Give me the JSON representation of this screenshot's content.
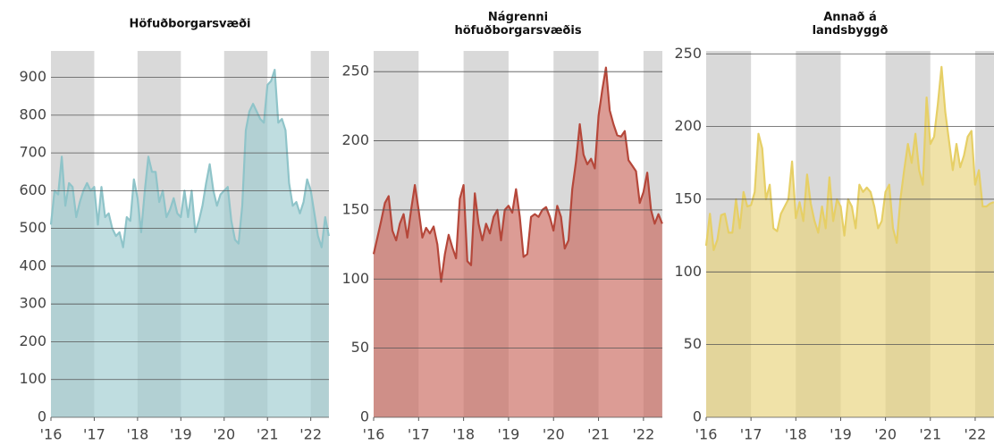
{
  "chart_data": [
    {
      "type": "area",
      "title": [
        "Höfuðborgarsvæði"
      ],
      "color": "#8fc4c9",
      "fill": "#9ccbcf",
      "xlim": [
        2016,
        2022.42
      ],
      "xticks": [
        {
          "value": 2016,
          "label": "'16"
        },
        {
          "value": 2017,
          "label": "'17"
        },
        {
          "value": 2018,
          "label": "'18"
        },
        {
          "value": 2019,
          "label": "'19"
        },
        {
          "value": 2020,
          "label": "'20"
        },
        {
          "value": 2021,
          "label": "'21"
        },
        {
          "value": 2022,
          "label": "'22"
        }
      ],
      "ylim": [
        0,
        970
      ],
      "yticks": [
        0,
        100,
        200,
        300,
        400,
        500,
        600,
        700,
        800,
        900
      ],
      "grid": true,
      "values": [
        510,
        600,
        590,
        690,
        560,
        620,
        610,
        530,
        570,
        600,
        620,
        600,
        610,
        510,
        610,
        530,
        540,
        500,
        480,
        490,
        450,
        530,
        520,
        630,
        580,
        490,
        600,
        690,
        650,
        650,
        570,
        600,
        530,
        550,
        580,
        540,
        530,
        600,
        530,
        600,
        490,
        520,
        560,
        620,
        670,
        600,
        560,
        590,
        600,
        610,
        520,
        470,
        460,
        560,
        760,
        810,
        830,
        810,
        790,
        780,
        880,
        890,
        920,
        780,
        790,
        760,
        620,
        560,
        570,
        540,
        570,
        630,
        600,
        540,
        480,
        450,
        530,
        480
      ]
    },
    {
      "type": "area",
      "title": [
        "Nágrenni",
        "höfuðborgarsvæðis"
      ],
      "color": "#b5473a",
      "fill": "#c9675c",
      "xlim": [
        2016,
        2022.42
      ],
      "xticks": [
        {
          "value": 2016,
          "label": "'16"
        },
        {
          "value": 2017,
          "label": "'17"
        },
        {
          "value": 2018,
          "label": "'18"
        },
        {
          "value": 2019,
          "label": "'19"
        },
        {
          "value": 2020,
          "label": "'20"
        },
        {
          "value": 2021,
          "label": "'21"
        },
        {
          "value": 2022,
          "label": "'22"
        }
      ],
      "ylim": [
        0,
        265
      ],
      "yticks": [
        0,
        50,
        100,
        150,
        200,
        250
      ],
      "grid": true,
      "values": [
        118,
        130,
        142,
        155,
        160,
        135,
        128,
        140,
        147,
        130,
        150,
        168,
        150,
        130,
        137,
        133,
        138,
        125,
        98,
        118,
        132,
        123,
        115,
        158,
        168,
        113,
        110,
        162,
        140,
        128,
        140,
        133,
        145,
        150,
        128,
        150,
        153,
        148,
        165,
        145,
        116,
        118,
        145,
        147,
        145,
        150,
        152,
        145,
        135,
        153,
        145,
        122,
        128,
        165,
        185,
        212,
        190,
        183,
        187,
        180,
        218,
        237,
        253,
        222,
        212,
        204,
        203,
        207,
        186,
        182,
        178,
        155,
        163,
        177,
        150,
        140,
        147,
        140
      ]
    },
    {
      "type": "area",
      "title": [
        "Annað á",
        "landsbyggð"
      ],
      "color": "#e6cf66",
      "fill": "#e8d27a",
      "xlim": [
        2016,
        2022.42
      ],
      "xticks": [
        {
          "value": 2016,
          "label": "'16"
        },
        {
          "value": 2017,
          "label": "'17"
        },
        {
          "value": 2018,
          "label": "'18"
        },
        {
          "value": 2019,
          "label": "'19"
        },
        {
          "value": 2020,
          "label": "'20"
        },
        {
          "value": 2021,
          "label": "'21"
        },
        {
          "value": 2022,
          "label": "'22"
        }
      ],
      "ylim": [
        0,
        252
      ],
      "yticks": [
        0,
        50,
        100,
        150,
        200,
        250
      ],
      "grid": true,
      "values": [
        118,
        140,
        115,
        122,
        139,
        140,
        127,
        127,
        150,
        130,
        155,
        145,
        146,
        155,
        195,
        185,
        150,
        160,
        130,
        128,
        140,
        145,
        150,
        176,
        137,
        148,
        135,
        167,
        147,
        135,
        127,
        145,
        130,
        165,
        135,
        150,
        145,
        125,
        150,
        145,
        130,
        160,
        155,
        158,
        155,
        145,
        130,
        135,
        155,
        160,
        130,
        120,
        150,
        170,
        188,
        175,
        195,
        170,
        160,
        220,
        188,
        193,
        215,
        241,
        210,
        190,
        170,
        188,
        172,
        180,
        193,
        197,
        160,
        170,
        145,
        145,
        147,
        148
      ]
    }
  ]
}
